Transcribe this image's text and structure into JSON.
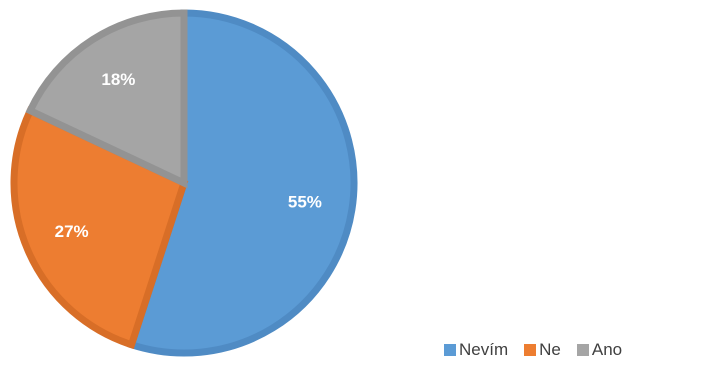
{
  "chart_data": {
    "type": "pie",
    "title": "",
    "categories": [
      "Nevím",
      "Ne",
      "Ano"
    ],
    "values": [
      55,
      27,
      18
    ],
    "labels": [
      "55%",
      "27%",
      "18%"
    ],
    "colors": [
      "#5B9BD5",
      "#ED7D31",
      "#A5A5A5"
    ],
    "border_colors": [
      "#4F8BC4",
      "#D86E27",
      "#939393"
    ],
    "start_angle_deg": 0,
    "direction": "clockwise",
    "legend": {
      "position": "bottom-right",
      "entries": [
        "Nevím",
        "Ne",
        "Ano"
      ]
    }
  }
}
